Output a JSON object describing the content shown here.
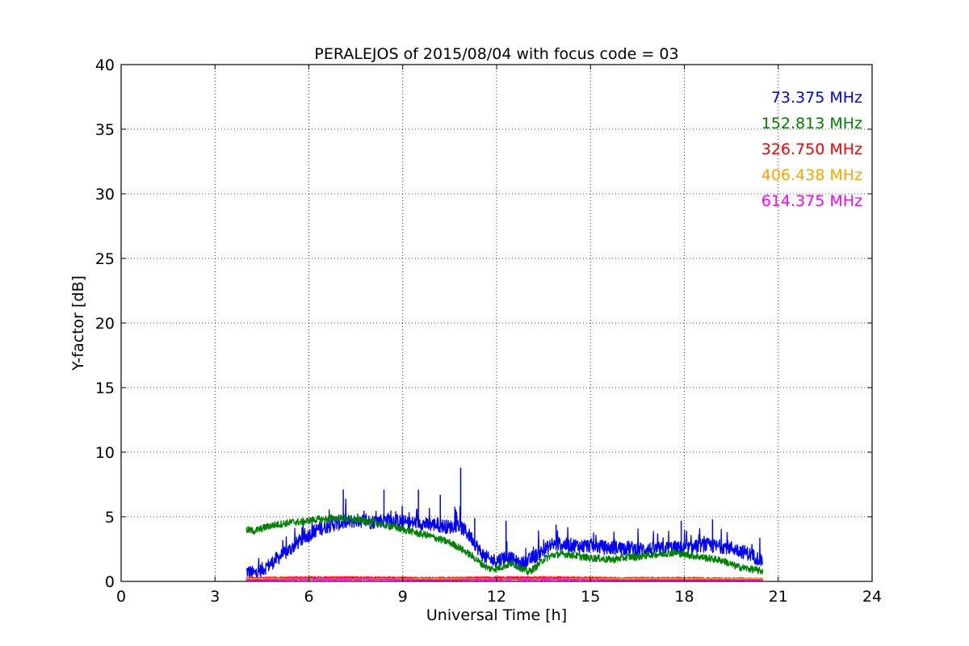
{
  "chart_data": {
    "type": "line",
    "title": "PERALEJOS of 2015/08/04 with focus code = 03",
    "xlabel": "Universal Time [h]",
    "ylabel": "Y-factor [dB]",
    "xlim": [
      0,
      24
    ],
    "ylim": [
      0,
      40
    ],
    "xticks": [
      0,
      3,
      6,
      9,
      12,
      15,
      18,
      21,
      24
    ],
    "yticks": [
      0,
      5,
      10,
      15,
      20,
      25,
      30,
      35,
      40
    ],
    "grid": true,
    "legend_position": "top-right",
    "series": [
      {
        "name": "73.375 MHz",
        "color": "#0000ff",
        "x": [
          4.0,
          4.25,
          4.5,
          4.75,
          5.0,
          5.25,
          5.5,
          5.75,
          6.0,
          6.25,
          6.5,
          6.75,
          7.0,
          7.25,
          7.5,
          7.75,
          8.0,
          8.25,
          8.5,
          8.75,
          9.0,
          9.25,
          9.5,
          9.75,
          10.0,
          10.25,
          10.5,
          10.75,
          11.0,
          11.25,
          11.5,
          11.75,
          12.0,
          12.25,
          12.5,
          12.75,
          13.0,
          13.25,
          13.5,
          13.75,
          14.0,
          14.25,
          14.5,
          14.75,
          15.0,
          15.25,
          15.5,
          15.75,
          16.0,
          16.25,
          16.5,
          16.75,
          17.0,
          17.25,
          17.5,
          17.75,
          18.0,
          18.25,
          18.5,
          18.75,
          19.0,
          19.25,
          19.5,
          19.75,
          20.0,
          20.25,
          20.5
        ],
        "y": [
          0.8,
          0.6,
          0.9,
          1.3,
          1.8,
          2.2,
          2.7,
          3.2,
          3.6,
          4.0,
          4.2,
          4.4,
          4.5,
          4.6,
          4.7,
          4.7,
          4.6,
          4.7,
          4.8,
          4.7,
          4.6,
          4.5,
          4.6,
          4.4,
          4.4,
          4.3,
          4.2,
          4.4,
          3.9,
          3.2,
          2.2,
          1.7,
          1.6,
          1.9,
          1.7,
          1.3,
          1.6,
          2.0,
          2.4,
          2.8,
          2.9,
          2.8,
          2.8,
          2.7,
          2.8,
          2.7,
          2.6,
          2.6,
          2.6,
          2.6,
          2.5,
          2.5,
          2.5,
          2.5,
          2.6,
          2.6,
          2.5,
          2.6,
          2.8,
          2.8,
          2.7,
          2.7,
          2.6,
          2.4,
          2.2,
          1.9,
          1.6
        ],
        "spikes": [
          [
            7.1,
            7.1
          ],
          [
            8.4,
            7.1
          ],
          [
            9.5,
            7.1
          ],
          [
            10.2,
            6.7
          ],
          [
            10.85,
            8.8
          ],
          [
            11.3,
            4.9
          ],
          [
            12.3,
            4.7
          ],
          [
            13.9,
            4.4
          ],
          [
            17.9,
            4.7
          ],
          [
            18.9,
            4.8
          ]
        ]
      },
      {
        "name": "152.813 MHz",
        "color": "#008000",
        "x": [
          4.0,
          4.25,
          4.5,
          4.75,
          5.0,
          5.25,
          5.5,
          5.75,
          6.0,
          6.25,
          6.5,
          6.75,
          7.0,
          7.25,
          7.5,
          7.75,
          8.0,
          8.25,
          8.5,
          8.75,
          9.0,
          9.25,
          9.5,
          9.75,
          10.0,
          10.25,
          10.5,
          10.75,
          11.0,
          11.25,
          11.5,
          11.75,
          12.0,
          12.25,
          12.5,
          12.75,
          13.0,
          13.25,
          13.5,
          13.75,
          14.0,
          14.25,
          14.5,
          14.75,
          15.0,
          15.25,
          15.5,
          15.75,
          16.0,
          16.25,
          16.5,
          16.75,
          17.0,
          17.25,
          17.5,
          17.75,
          18.0,
          18.25,
          18.5,
          18.75,
          19.0,
          19.25,
          19.5,
          19.75,
          20.0,
          20.25,
          20.5
        ],
        "y": [
          4.0,
          3.9,
          4.1,
          4.3,
          4.4,
          4.5,
          4.6,
          4.6,
          4.7,
          4.8,
          4.8,
          4.9,
          4.9,
          4.8,
          4.8,
          4.7,
          4.6,
          4.5,
          4.3,
          4.2,
          4.0,
          3.9,
          3.7,
          3.6,
          3.4,
          3.2,
          3.0,
          2.7,
          2.3,
          1.9,
          1.4,
          1.0,
          1.0,
          1.2,
          1.4,
          1.1,
          0.7,
          1.1,
          1.7,
          2.0,
          2.1,
          2.1,
          2.0,
          1.9,
          1.8,
          1.8,
          1.7,
          1.7,
          1.8,
          1.9,
          1.9,
          2.0,
          2.1,
          2.1,
          2.2,
          2.2,
          2.1,
          2.0,
          1.9,
          1.8,
          1.7,
          1.6,
          1.3,
          1.1,
          1.0,
          0.9,
          0.8
        ]
      },
      {
        "name": "326.750 MHz",
        "color": "#ff0000",
        "x": [
          4.0,
          6.0,
          8.0,
          10.0,
          12.0,
          14.0,
          16.0,
          18.0,
          20.5
        ],
        "y": [
          0.25,
          0.3,
          0.3,
          0.25,
          0.3,
          0.3,
          0.25,
          0.25,
          0.2
        ]
      },
      {
        "name": "406.438 MHz",
        "color": "#ffa500",
        "x": [
          4.0,
          6.0,
          8.0,
          10.0,
          12.0,
          14.0,
          16.0,
          18.0,
          20.5
        ],
        "y": [
          0.2,
          0.2,
          0.2,
          0.2,
          0.2,
          0.2,
          0.2,
          0.2,
          0.2
        ]
      },
      {
        "name": "614.375 MHz",
        "color": "#ff00ff",
        "x": [
          4.0,
          6.0,
          8.0,
          10.0,
          12.0,
          14.0,
          16.0,
          18.0,
          20.5
        ],
        "y": [
          0.1,
          0.15,
          0.15,
          0.1,
          0.15,
          0.15,
          0.1,
          0.1,
          0.1
        ]
      }
    ]
  }
}
